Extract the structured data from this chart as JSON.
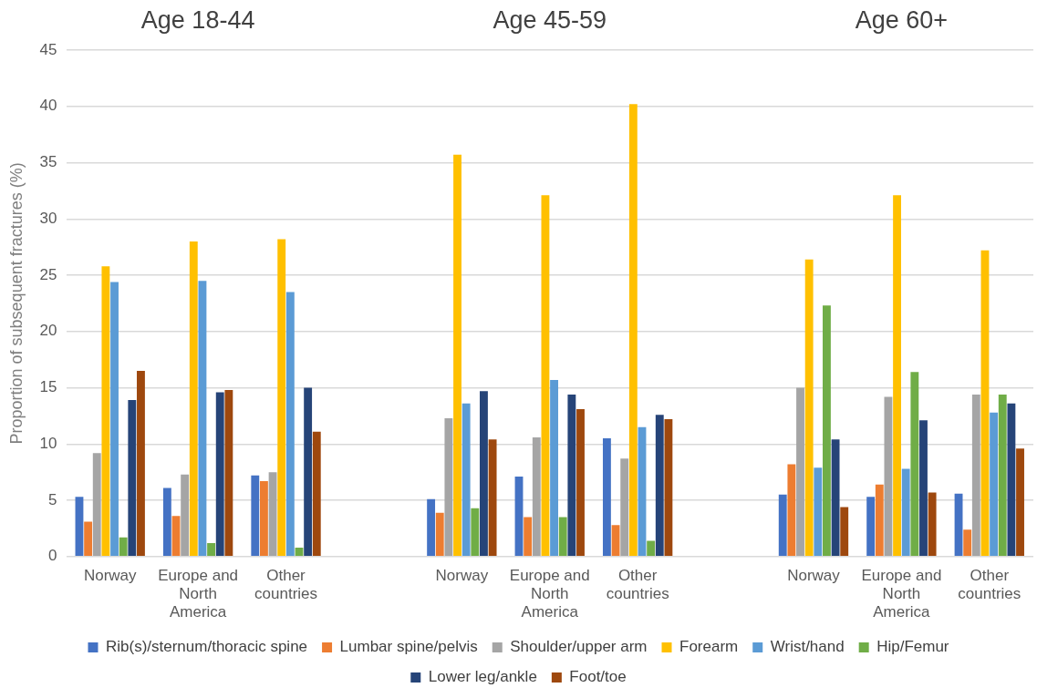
{
  "chart_data": {
    "type": "bar",
    "categories": [
      "Norway",
      "Europe and North America",
      "Other countries",
      null,
      "Norway",
      "Europe and North America",
      "Other countries",
      null,
      "Norway",
      "Europe and North America",
      "Other countries"
    ],
    "series": [
      {
        "name": "Rib(s)/sternum/thoracic spine",
        "color": "#4472c4",
        "values": [
          5.3,
          6.1,
          7.2,
          null,
          5.1,
          7.1,
          10.5,
          null,
          5.5,
          5.3,
          5.6
        ]
      },
      {
        "name": "Lumbar spine/pelvis",
        "color": "#ed7d31",
        "values": [
          3.1,
          3.6,
          6.7,
          null,
          3.9,
          3.5,
          2.8,
          null,
          8.2,
          6.4,
          2.4
        ]
      },
      {
        "name": "Shoulder/upper arm",
        "color": "#a5a5a5",
        "values": [
          9.2,
          7.3,
          7.5,
          null,
          12.3,
          10.6,
          8.7,
          null,
          15.0,
          14.2,
          14.4
        ]
      },
      {
        "name": "Forearm",
        "color": "#ffc000",
        "values": [
          25.8,
          28.0,
          28.2,
          null,
          35.7,
          32.1,
          40.2,
          null,
          26.4,
          32.1,
          27.2
        ]
      },
      {
        "name": "Wrist/hand",
        "color": "#5b9bd5",
        "values": [
          24.4,
          24.5,
          23.5,
          null,
          13.6,
          15.7,
          11.5,
          null,
          7.9,
          7.8,
          12.8
        ]
      },
      {
        "name": "Hip/Femur",
        "color": "#70ad47",
        "values": [
          1.7,
          1.2,
          0.8,
          null,
          4.3,
          3.5,
          1.4,
          null,
          22.3,
          16.4,
          14.4
        ]
      },
      {
        "name": "Lower leg/ankle",
        "color": "#264478",
        "values": [
          13.9,
          14.6,
          15.0,
          null,
          14.7,
          14.4,
          12.6,
          null,
          10.4,
          12.1,
          13.6
        ]
      },
      {
        "name": "Foot/toe",
        "color": "#9e480e",
        "values": [
          16.5,
          14.8,
          11.1,
          null,
          10.4,
          13.1,
          12.2,
          null,
          4.4,
          5.7,
          9.6
        ]
      }
    ],
    "ylabel": "Proportion of subsequent fractures (%)",
    "ylim": [
      0,
      45
    ],
    "yticks": [
      0,
      5,
      10,
      15,
      20,
      25,
      30,
      35,
      40,
      45
    ],
    "annotations": [
      "Age 18-44",
      "Age 45-59",
      "Age 60+"
    ],
    "grid": "y",
    "legend": "bottom"
  }
}
